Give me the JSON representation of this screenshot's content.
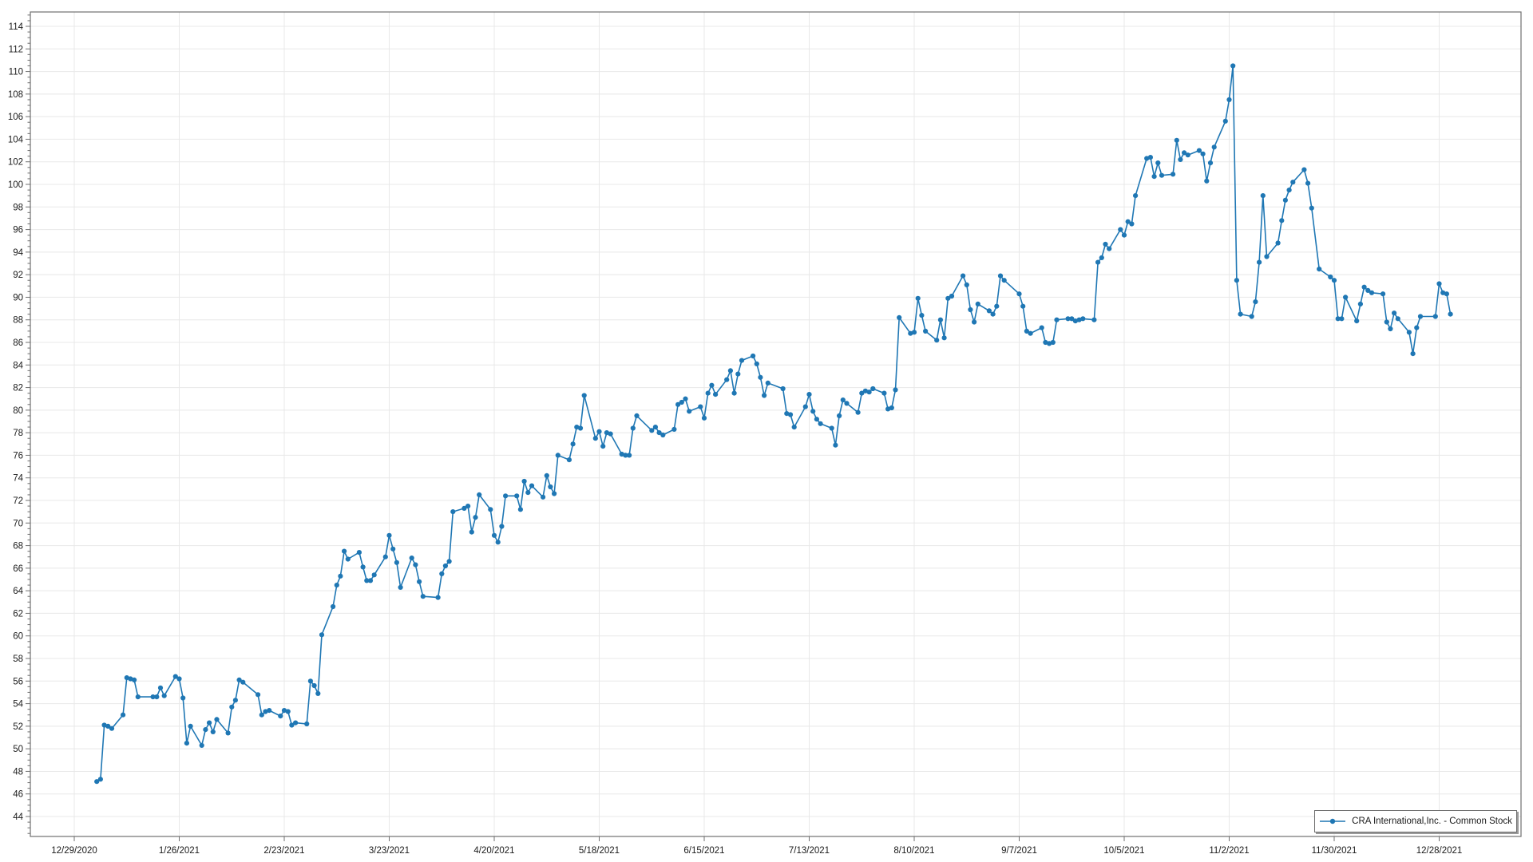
{
  "legend": {
    "label": "CRA International,Inc. - Common Stock"
  },
  "chart_data": {
    "type": "line",
    "title": "",
    "xlabel": "",
    "ylabel": "",
    "grid": true,
    "legend_position": "bottom-right",
    "line_color": "#1f77b4",
    "grid_color": "#e8e8e8",
    "border_color": "#707070",
    "label_color": "#1a1a1a",
    "marker": "circle",
    "y_ticks": {
      "min": 44,
      "max": 114,
      "step": 2
    },
    "ylim": [
      42.2,
      115.3
    ],
    "x_tick_interval_days": 28,
    "x_tick_start_date": "2020-12-29",
    "x_tick_labels": [
      "12/29/2020",
      "1/26/2021",
      "2/23/2021",
      "3/23/2021",
      "4/20/2021",
      "5/18/2021",
      "6/15/2021",
      "7/13/2021",
      "8/10/2021",
      "9/7/2021",
      "10/5/2021",
      "11/2/2021",
      "11/30/2021",
      "12/28/2021"
    ],
    "series": [
      {
        "name": "CRA International,Inc. - Common Stock",
        "frequency": "daily-trading-days",
        "start_date": "2021-01-04",
        "values": [
          47.1,
          47.3,
          52.1,
          52.0,
          51.8,
          53.0,
          56.3,
          56.2,
          56.1,
          54.6,
          54.6,
          54.6,
          55.4,
          54.7,
          56.4,
          56.2,
          54.5,
          50.5,
          52.0,
          50.3,
          51.7,
          52.3,
          51.5,
          52.6,
          51.4,
          53.7,
          54.3,
          56.1,
          55.9,
          54.8,
          53.0,
          53.3,
          53.4,
          52.9,
          53.4,
          53.3,
          52.1,
          52.3,
          52.2,
          56.0,
          55.6,
          54.9,
          60.1,
          62.6,
          64.5,
          65.3,
          67.5,
          66.8,
          67.4,
          66.1,
          64.9,
          64.9,
          65.4,
          67.0,
          68.9,
          67.7,
          66.5,
          64.3,
          66.9,
          66.3,
          64.8,
          63.5,
          63.4,
          65.5,
          66.2,
          66.6,
          71.0,
          71.3,
          71.5,
          69.2,
          70.5,
          72.5,
          71.2,
          68.9,
          68.3,
          69.7,
          72.4,
          72.4,
          71.2,
          73.7,
          72.7,
          73.3,
          72.3,
          74.2,
          73.2,
          72.6,
          76.0,
          75.6,
          77.0,
          78.5,
          78.4,
          81.3,
          77.5,
          78.1,
          76.8,
          78.0,
          77.9,
          76.1,
          76.0,
          76.0,
          78.4,
          79.5,
          78.2,
          78.5,
          78.0,
          77.8,
          78.3,
          80.5,
          80.7,
          81.0,
          79.9,
          80.3,
          79.3,
          81.5,
          82.2,
          81.4,
          82.7,
          83.5,
          81.5,
          83.2,
          84.4,
          84.8,
          84.1,
          82.9,
          81.3,
          82.4,
          81.9,
          79.7,
          79.6,
          78.5,
          80.3,
          81.4,
          79.9,
          79.2,
          78.8,
          78.4,
          76.9,
          79.5,
          80.9,
          80.6,
          79.8,
          81.5,
          81.7,
          81.6,
          81.9,
          81.5,
          80.1,
          80.2,
          81.8,
          88.2,
          86.8,
          86.9,
          89.9,
          88.4,
          87.0,
          86.2,
          88.0,
          86.4,
          89.9,
          90.1,
          91.9,
          91.1,
          88.9,
          87.8,
          89.4,
          88.8,
          88.5,
          89.2,
          91.9,
          91.5,
          90.3,
          89.2,
          87.0,
          86.8,
          87.3,
          86.0,
          85.9,
          86.0,
          88.0,
          88.1,
          88.1,
          87.9,
          88.0,
          88.1,
          88.0,
          93.1,
          93.5,
          94.7,
          94.3,
          96.0,
          95.5,
          96.7,
          96.5,
          99.0,
          102.3,
          102.4,
          100.7,
          101.9,
          100.8,
          100.9,
          103.9,
          102.2,
          102.8,
          102.6,
          103.0,
          102.7,
          100.3,
          101.9,
          103.3,
          105.6,
          107.5,
          110.5,
          91.5,
          88.5,
          88.3,
          89.6,
          93.1,
          99.0,
          93.6,
          94.8,
          96.8,
          98.6,
          99.5,
          100.2,
          101.3,
          100.1,
          97.9,
          92.5,
          91.8,
          91.5,
          88.1,
          88.1,
          90.0,
          87.9,
          89.4,
          90.9,
          90.6,
          90.4,
          90.3,
          87.8,
          87.2,
          88.6,
          88.1,
          86.9,
          85.0,
          87.3,
          88.3,
          88.3,
          91.2,
          90.4,
          90.3,
          88.5
        ]
      }
    ]
  }
}
